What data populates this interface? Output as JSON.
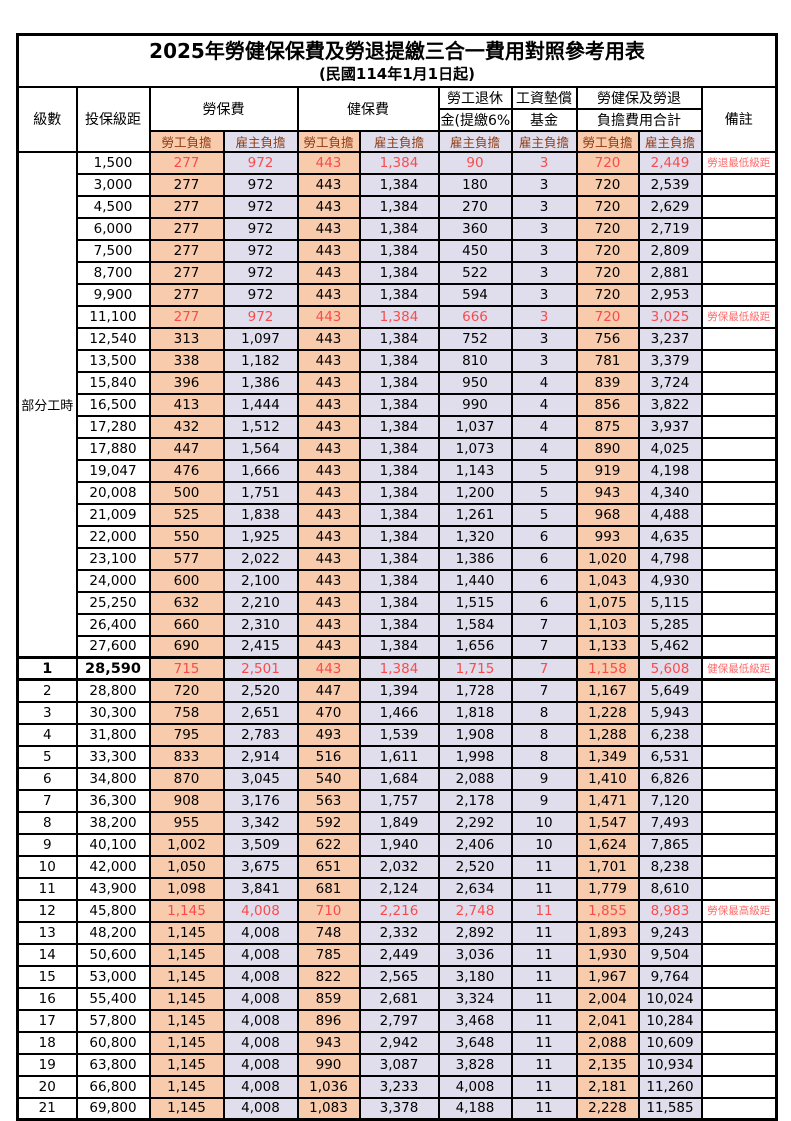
{
  "title": "2025年勞健保保費及勞退提繳三合一費用對照參考用表",
  "subtitle": "(民國114年1月1日起)",
  "colors": {
    "orange": "#F8CBAD",
    "lav": "#E0DEED",
    "red": "#FA4B4B",
    "remark-red": "#FF6B6B",
    "head-red": "#8F3B12"
  },
  "header": {
    "level": "級數",
    "bracket": "投保級距",
    "labor_ins": "勞保費",
    "health_ins": "健保費",
    "pension_l1": "勞工退休",
    "pension_l2": "金(提繳6%)",
    "wage_fund_l1": "工資墊償",
    "wage_fund_l2": "基金",
    "total_l1": "勞健保及勞退",
    "total_l2": "負擔費用合計",
    "remark": "備註",
    "employee": "勞工負擔",
    "employer": "雇主負擔"
  },
  "part_time_label": "部分工時",
  "rows": [
    {
      "level": null,
      "bracket": "1,500",
      "li_emp": "277",
      "li_er": "972",
      "hi_emp": "443",
      "hi_er": "1,384",
      "pension": "90",
      "fund": "3",
      "tot_emp": "720",
      "tot_er": "2,449",
      "remark": "勞退最低級距",
      "hl": true
    },
    {
      "level": null,
      "bracket": "3,000",
      "li_emp": "277",
      "li_er": "972",
      "hi_emp": "443",
      "hi_er": "1,384",
      "pension": "180",
      "fund": "3",
      "tot_emp": "720",
      "tot_er": "2,539",
      "remark": ""
    },
    {
      "level": null,
      "bracket": "4,500",
      "li_emp": "277",
      "li_er": "972",
      "hi_emp": "443",
      "hi_er": "1,384",
      "pension": "270",
      "fund": "3",
      "tot_emp": "720",
      "tot_er": "2,629",
      "remark": ""
    },
    {
      "level": null,
      "bracket": "6,000",
      "li_emp": "277",
      "li_er": "972",
      "hi_emp": "443",
      "hi_er": "1,384",
      "pension": "360",
      "fund": "3",
      "tot_emp": "720",
      "tot_er": "2,719",
      "remark": ""
    },
    {
      "level": null,
      "bracket": "7,500",
      "li_emp": "277",
      "li_er": "972",
      "hi_emp": "443",
      "hi_er": "1,384",
      "pension": "450",
      "fund": "3",
      "tot_emp": "720",
      "tot_er": "2,809",
      "remark": ""
    },
    {
      "level": null,
      "bracket": "8,700",
      "li_emp": "277",
      "li_er": "972",
      "hi_emp": "443",
      "hi_er": "1,384",
      "pension": "522",
      "fund": "3",
      "tot_emp": "720",
      "tot_er": "2,881",
      "remark": ""
    },
    {
      "level": null,
      "bracket": "9,900",
      "li_emp": "277",
      "li_er": "972",
      "hi_emp": "443",
      "hi_er": "1,384",
      "pension": "594",
      "fund": "3",
      "tot_emp": "720",
      "tot_er": "2,953",
      "remark": ""
    },
    {
      "level": null,
      "bracket": "11,100",
      "li_emp": "277",
      "li_er": "972",
      "hi_emp": "443",
      "hi_er": "1,384",
      "pension": "666",
      "fund": "3",
      "tot_emp": "720",
      "tot_er": "3,025",
      "remark": "勞保最低級距",
      "hl": true
    },
    {
      "level": null,
      "bracket": "12,540",
      "li_emp": "313",
      "li_er": "1,097",
      "hi_emp": "443",
      "hi_er": "1,384",
      "pension": "752",
      "fund": "3",
      "tot_emp": "756",
      "tot_er": "3,237",
      "remark": ""
    },
    {
      "level": null,
      "bracket": "13,500",
      "li_emp": "338",
      "li_er": "1,182",
      "hi_emp": "443",
      "hi_er": "1,384",
      "pension": "810",
      "fund": "3",
      "tot_emp": "781",
      "tot_er": "3,379",
      "remark": ""
    },
    {
      "level": null,
      "bracket": "15,840",
      "li_emp": "396",
      "li_er": "1,386",
      "hi_emp": "443",
      "hi_er": "1,384",
      "pension": "950",
      "fund": "4",
      "tot_emp": "839",
      "tot_er": "3,724",
      "remark": ""
    },
    {
      "level": null,
      "bracket": "16,500",
      "li_emp": "413",
      "li_er": "1,444",
      "hi_emp": "443",
      "hi_er": "1,384",
      "pension": "990",
      "fund": "4",
      "tot_emp": "856",
      "tot_er": "3,822",
      "remark": ""
    },
    {
      "level": null,
      "bracket": "17,280",
      "li_emp": "432",
      "li_er": "1,512",
      "hi_emp": "443",
      "hi_er": "1,384",
      "pension": "1,037",
      "fund": "4",
      "tot_emp": "875",
      "tot_er": "3,937",
      "remark": ""
    },
    {
      "level": null,
      "bracket": "17,880",
      "li_emp": "447",
      "li_er": "1,564",
      "hi_emp": "443",
      "hi_er": "1,384",
      "pension": "1,073",
      "fund": "4",
      "tot_emp": "890",
      "tot_er": "4,025",
      "remark": ""
    },
    {
      "level": null,
      "bracket": "19,047",
      "li_emp": "476",
      "li_er": "1,666",
      "hi_emp": "443",
      "hi_er": "1,384",
      "pension": "1,143",
      "fund": "5",
      "tot_emp": "919",
      "tot_er": "4,198",
      "remark": ""
    },
    {
      "level": null,
      "bracket": "20,008",
      "li_emp": "500",
      "li_er": "1,751",
      "hi_emp": "443",
      "hi_er": "1,384",
      "pension": "1,200",
      "fund": "5",
      "tot_emp": "943",
      "tot_er": "4,340",
      "remark": ""
    },
    {
      "level": null,
      "bracket": "21,009",
      "li_emp": "525",
      "li_er": "1,838",
      "hi_emp": "443",
      "hi_er": "1,384",
      "pension": "1,261",
      "fund": "5",
      "tot_emp": "968",
      "tot_er": "4,488",
      "remark": ""
    },
    {
      "level": null,
      "bracket": "22,000",
      "li_emp": "550",
      "li_er": "1,925",
      "hi_emp": "443",
      "hi_er": "1,384",
      "pension": "1,320",
      "fund": "6",
      "tot_emp": "993",
      "tot_er": "4,635",
      "remark": ""
    },
    {
      "level": null,
      "bracket": "23,100",
      "li_emp": "577",
      "li_er": "2,022",
      "hi_emp": "443",
      "hi_er": "1,384",
      "pension": "1,386",
      "fund": "6",
      "tot_emp": "1,020",
      "tot_er": "4,798",
      "remark": ""
    },
    {
      "level": null,
      "bracket": "24,000",
      "li_emp": "600",
      "li_er": "2,100",
      "hi_emp": "443",
      "hi_er": "1,384",
      "pension": "1,440",
      "fund": "6",
      "tot_emp": "1,043",
      "tot_er": "4,930",
      "remark": ""
    },
    {
      "level": null,
      "bracket": "25,250",
      "li_emp": "632",
      "li_er": "2,210",
      "hi_emp": "443",
      "hi_er": "1,384",
      "pension": "1,515",
      "fund": "6",
      "tot_emp": "1,075",
      "tot_er": "5,115",
      "remark": ""
    },
    {
      "level": null,
      "bracket": "26,400",
      "li_emp": "660",
      "li_er": "2,310",
      "hi_emp": "443",
      "hi_er": "1,384",
      "pension": "1,584",
      "fund": "7",
      "tot_emp": "1,103",
      "tot_er": "5,285",
      "remark": ""
    },
    {
      "level": null,
      "bracket": "27,600",
      "li_emp": "690",
      "li_er": "2,415",
      "hi_emp": "443",
      "hi_er": "1,384",
      "pension": "1,656",
      "fund": "7",
      "tot_emp": "1,133",
      "tot_er": "5,462",
      "remark": ""
    },
    {
      "level": "1",
      "bracket": "28,590",
      "li_emp": "715",
      "li_er": "2,501",
      "hi_emp": "443",
      "hi_er": "1,384",
      "pension": "1,715",
      "fund": "7",
      "tot_emp": "1,158",
      "tot_er": "5,608",
      "remark": "健保最低級距",
      "hl": true,
      "bold": true,
      "section_start": true
    },
    {
      "level": "2",
      "bracket": "28,800",
      "li_emp": "720",
      "li_er": "2,520",
      "hi_emp": "447",
      "hi_er": "1,394",
      "pension": "1,728",
      "fund": "7",
      "tot_emp": "1,167",
      "tot_er": "5,649",
      "remark": ""
    },
    {
      "level": "3",
      "bracket": "30,300",
      "li_emp": "758",
      "li_er": "2,651",
      "hi_emp": "470",
      "hi_er": "1,466",
      "pension": "1,818",
      "fund": "8",
      "tot_emp": "1,228",
      "tot_er": "5,943",
      "remark": ""
    },
    {
      "level": "4",
      "bracket": "31,800",
      "li_emp": "795",
      "li_er": "2,783",
      "hi_emp": "493",
      "hi_er": "1,539",
      "pension": "1,908",
      "fund": "8",
      "tot_emp": "1,288",
      "tot_er": "6,238",
      "remark": ""
    },
    {
      "level": "5",
      "bracket": "33,300",
      "li_emp": "833",
      "li_er": "2,914",
      "hi_emp": "516",
      "hi_er": "1,611",
      "pension": "1,998",
      "fund": "8",
      "tot_emp": "1,349",
      "tot_er": "6,531",
      "remark": ""
    },
    {
      "level": "6",
      "bracket": "34,800",
      "li_emp": "870",
      "li_er": "3,045",
      "hi_emp": "540",
      "hi_er": "1,684",
      "pension": "2,088",
      "fund": "9",
      "tot_emp": "1,410",
      "tot_er": "6,826",
      "remark": ""
    },
    {
      "level": "7",
      "bracket": "36,300",
      "li_emp": "908",
      "li_er": "3,176",
      "hi_emp": "563",
      "hi_er": "1,757",
      "pension": "2,178",
      "fund": "9",
      "tot_emp": "1,471",
      "tot_er": "7,120",
      "remark": ""
    },
    {
      "level": "8",
      "bracket": "38,200",
      "li_emp": "955",
      "li_er": "3,342",
      "hi_emp": "592",
      "hi_er": "1,849",
      "pension": "2,292",
      "fund": "10",
      "tot_emp": "1,547",
      "tot_er": "7,493",
      "remark": ""
    },
    {
      "level": "9",
      "bracket": "40,100",
      "li_emp": "1,002",
      "li_er": "3,509",
      "hi_emp": "622",
      "hi_er": "1,940",
      "pension": "2,406",
      "fund": "10",
      "tot_emp": "1,624",
      "tot_er": "7,865",
      "remark": ""
    },
    {
      "level": "10",
      "bracket": "42,000",
      "li_emp": "1,050",
      "li_er": "3,675",
      "hi_emp": "651",
      "hi_er": "2,032",
      "pension": "2,520",
      "fund": "11",
      "tot_emp": "1,701",
      "tot_er": "8,238",
      "remark": ""
    },
    {
      "level": "11",
      "bracket": "43,900",
      "li_emp": "1,098",
      "li_er": "3,841",
      "hi_emp": "681",
      "hi_er": "2,124",
      "pension": "2,634",
      "fund": "11",
      "tot_emp": "1,779",
      "tot_er": "8,610",
      "remark": ""
    },
    {
      "level": "12",
      "bracket": "45,800",
      "li_emp": "1,145",
      "li_er": "4,008",
      "hi_emp": "710",
      "hi_er": "2,216",
      "pension": "2,748",
      "fund": "11",
      "tot_emp": "1,855",
      "tot_er": "8,983",
      "remark": "勞保最高級距",
      "hl": true
    },
    {
      "level": "13",
      "bracket": "48,200",
      "li_emp": "1,145",
      "li_er": "4,008",
      "hi_emp": "748",
      "hi_er": "2,332",
      "pension": "2,892",
      "fund": "11",
      "tot_emp": "1,893",
      "tot_er": "9,243",
      "remark": ""
    },
    {
      "level": "14",
      "bracket": "50,600",
      "li_emp": "1,145",
      "li_er": "4,008",
      "hi_emp": "785",
      "hi_er": "2,449",
      "pension": "3,036",
      "fund": "11",
      "tot_emp": "1,930",
      "tot_er": "9,504",
      "remark": ""
    },
    {
      "level": "15",
      "bracket": "53,000",
      "li_emp": "1,145",
      "li_er": "4,008",
      "hi_emp": "822",
      "hi_er": "2,565",
      "pension": "3,180",
      "fund": "11",
      "tot_emp": "1,967",
      "tot_er": "9,764",
      "remark": ""
    },
    {
      "level": "16",
      "bracket": "55,400",
      "li_emp": "1,145",
      "li_er": "4,008",
      "hi_emp": "859",
      "hi_er": "2,681",
      "pension": "3,324",
      "fund": "11",
      "tot_emp": "2,004",
      "tot_er": "10,024",
      "remark": ""
    },
    {
      "level": "17",
      "bracket": "57,800",
      "li_emp": "1,145",
      "li_er": "4,008",
      "hi_emp": "896",
      "hi_er": "2,797",
      "pension": "3,468",
      "fund": "11",
      "tot_emp": "2,041",
      "tot_er": "10,284",
      "remark": ""
    },
    {
      "level": "18",
      "bracket": "60,800",
      "li_emp": "1,145",
      "li_er": "4,008",
      "hi_emp": "943",
      "hi_er": "2,942",
      "pension": "3,648",
      "fund": "11",
      "tot_emp": "2,088",
      "tot_er": "10,609",
      "remark": ""
    },
    {
      "level": "19",
      "bracket": "63,800",
      "li_emp": "1,145",
      "li_er": "4,008",
      "hi_emp": "990",
      "hi_er": "3,087",
      "pension": "3,828",
      "fund": "11",
      "tot_emp": "2,135",
      "tot_er": "10,934",
      "remark": ""
    },
    {
      "level": "20",
      "bracket": "66,800",
      "li_emp": "1,145",
      "li_er": "4,008",
      "hi_emp": "1,036",
      "hi_er": "3,233",
      "pension": "4,008",
      "fund": "11",
      "tot_emp": "2,181",
      "tot_er": "11,260",
      "remark": ""
    },
    {
      "level": "21",
      "bracket": "69,800",
      "li_emp": "1,145",
      "li_er": "4,008",
      "hi_emp": "1,083",
      "hi_er": "3,378",
      "pension": "4,188",
      "fund": "11",
      "tot_emp": "2,228",
      "tot_er": "11,585",
      "remark": ""
    }
  ]
}
